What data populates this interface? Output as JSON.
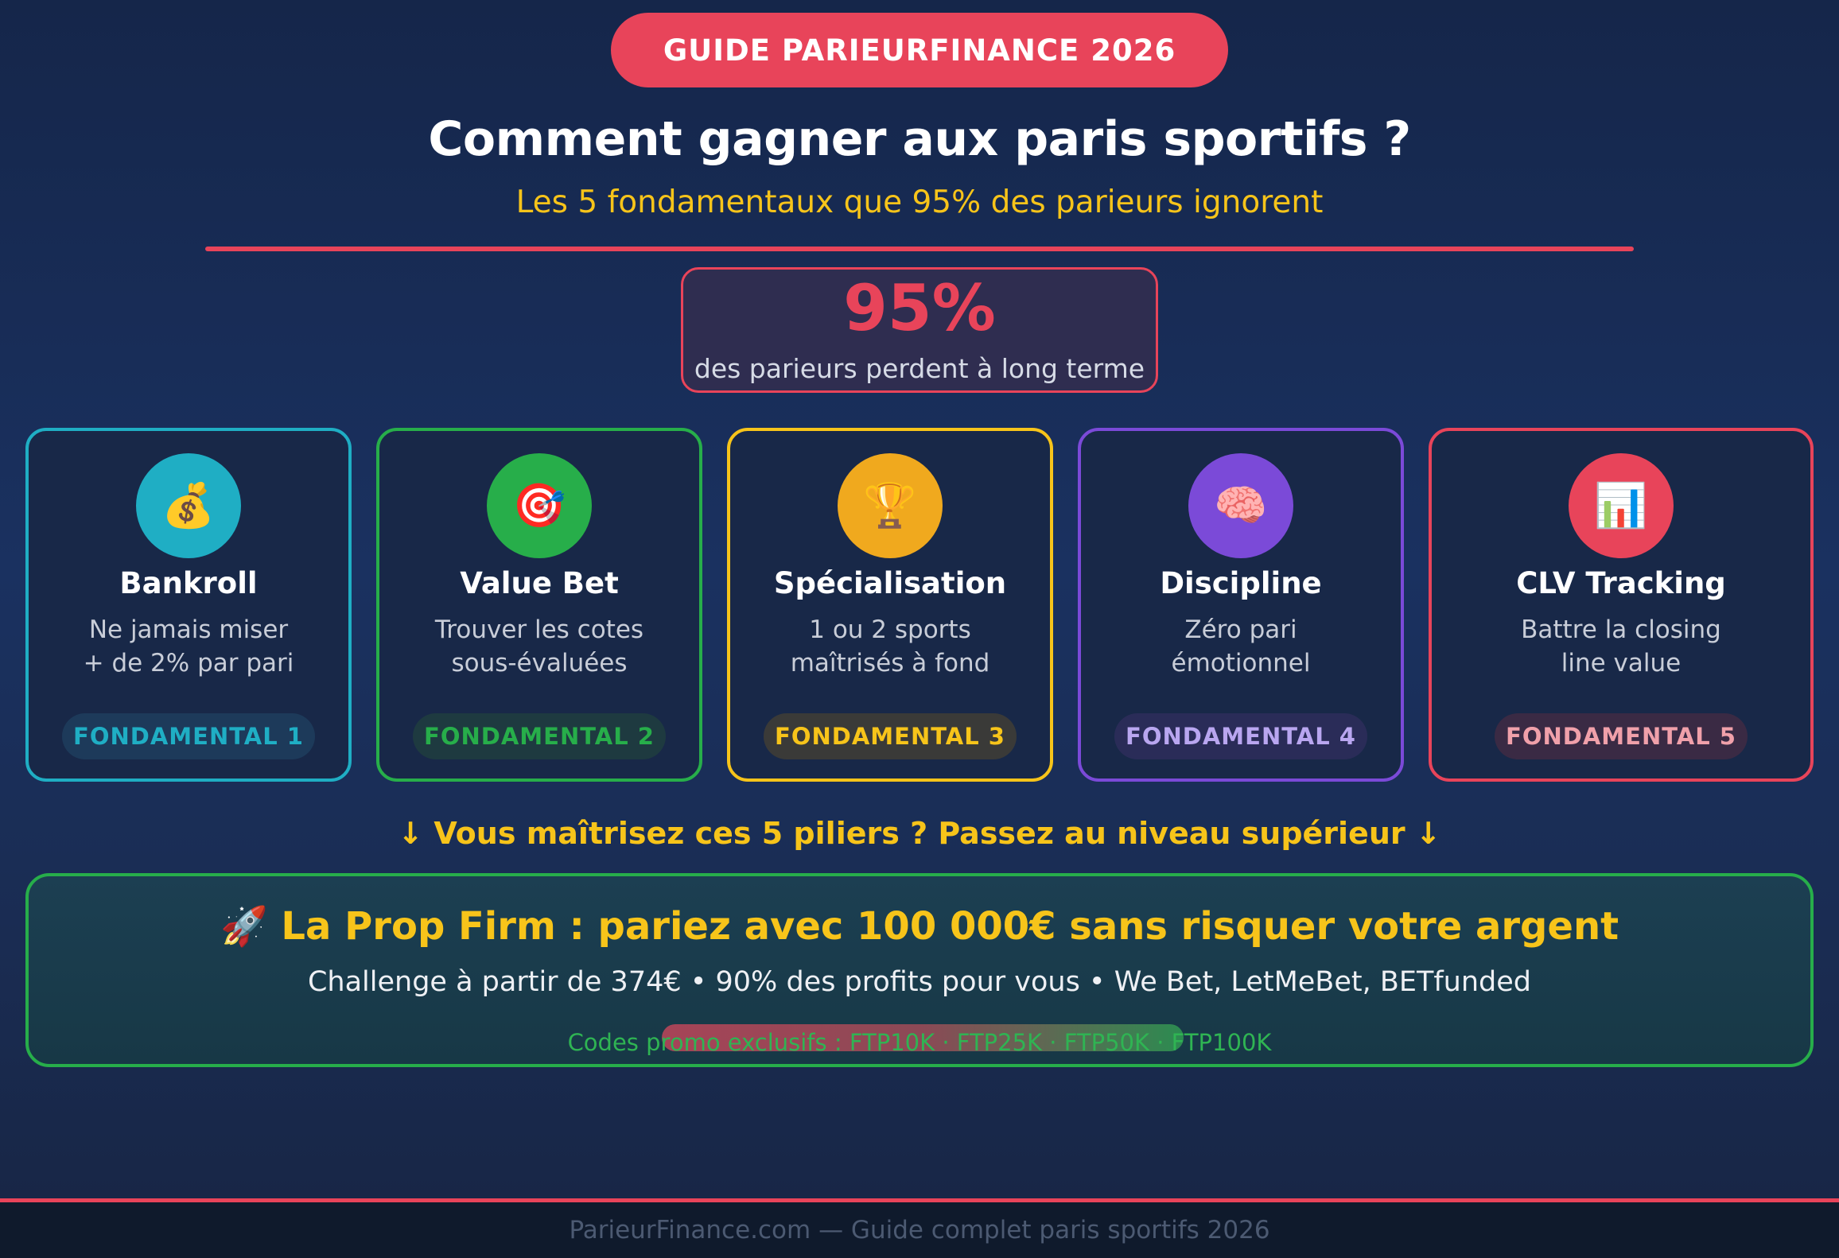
{
  "header": {
    "badge": "GUIDE PARIEURFINANCE 2026",
    "title": "Comment gagner aux paris sportifs ?",
    "subtitle": "Les 5 fondamentaux que 95% des parieurs ignorent"
  },
  "stat": {
    "value": "95%",
    "label": "des parieurs perdent à long terme"
  },
  "cards": [
    {
      "icon": "money-bag-icon",
      "emoji": "💰",
      "title": "Bankroll",
      "desc_line1": "Ne jamais miser",
      "desc_line2": "+ de 2% par pari",
      "tag": "FONDAMENTAL 1",
      "color": "#1faec4",
      "icon_bg": "#1faec4",
      "tag_bg": "#1d3a5a",
      "tag_color": "#1faec4"
    },
    {
      "icon": "target-icon",
      "emoji": "🎯",
      "title": "Value Bet",
      "desc_line1": "Trouver les cotes",
      "desc_line2": "sous-évaluées",
      "tag": "FONDAMENTAL 2",
      "color": "#27ae4a",
      "icon_bg": "#27ae4a",
      "tag_bg": "#1e3a40",
      "tag_color": "#27ae4a"
    },
    {
      "icon": "trophy-icon",
      "emoji": "🏆",
      "title": "Spécialisation",
      "desc_line1": "1 ou 2 sports",
      "desc_line2": "maîtrisés à fond",
      "tag": "FONDAMENTAL 3",
      "color": "#f7c41a",
      "icon_bg": "#f0a91e",
      "tag_bg": "#3a3a38",
      "tag_color": "#f7c41a"
    },
    {
      "icon": "brain-icon",
      "emoji": "🧠",
      "title": "Discipline",
      "desc_line1": "Zéro pari",
      "desc_line2": "émotionnel",
      "tag": "FONDAMENTAL 4",
      "color": "#7b4ad8",
      "icon_bg": "#7b4ad8",
      "tag_bg": "#2a2c58",
      "tag_color": "#b9a6f0"
    },
    {
      "icon": "bar-chart-icon",
      "emoji": "📊",
      "title": "CLV Tracking",
      "desc_line1": "Battre la closing",
      "desc_line2": "line value",
      "tag": "FONDAMENTAL 5",
      "color": "#e8445a",
      "icon_bg": "#e8445a",
      "tag_bg": "#3a2a44",
      "tag_color": "#f0a0aa"
    }
  ],
  "cta": {
    "arrow_text": "↓ Vous maîtrisez ces 5 piliers ? Passez au niveau supérieur ↓",
    "emoji": "🚀",
    "title": "La Prop Firm : pariez avec 100 000€ sans risquer votre argent",
    "subtitle": "Challenge à partir de 374€ • 90% des profits pour vous • We Bet, LetMeBet, BETfunded",
    "codes": "Codes promo exclusifs : FTP10K · FTP25K · FTP50K · FTP100K"
  },
  "footer": {
    "text": "ParieurFinance.com — Guide complet paris sportifs 2026"
  }
}
